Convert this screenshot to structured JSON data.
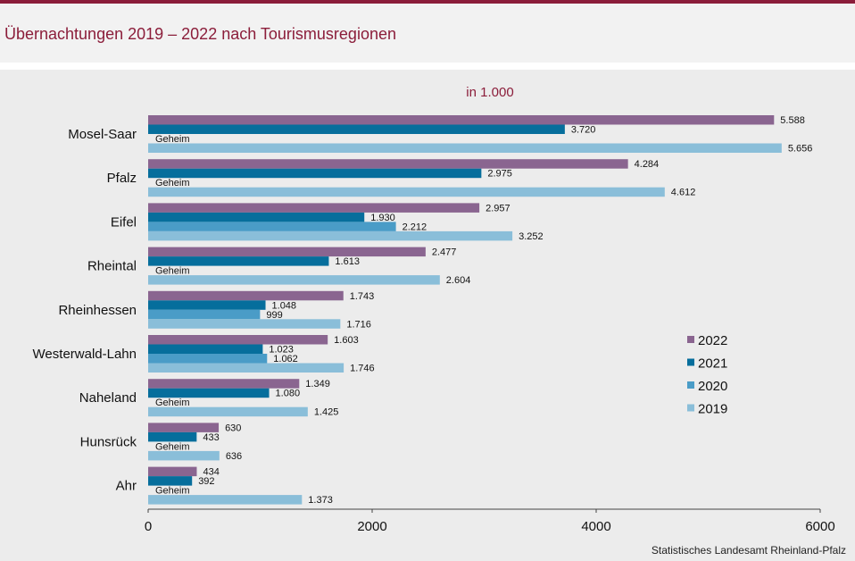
{
  "title": "Übernachtungen 2019 – 2022 nach Tourismusregionen",
  "source": "Statistisches Landesamt Rheinland-Pfalz",
  "chart_data": {
    "type": "bar",
    "orientation": "horizontal",
    "title": "Übernachtungen 2019 – 2022 nach Tourismusregionen",
    "subtitle": "in 1.000",
    "categories": [
      "Mosel-Saar",
      "Pfalz",
      "Eifel",
      "Rheintal",
      "Rheinhessen",
      "Westerwald-Lahn",
      "Naheland",
      "Hunsrück",
      "Ahr"
    ],
    "series": [
      {
        "name": "2022",
        "color": "#8a6590",
        "values": [
          5588,
          4284,
          2957,
          2477,
          1743,
          1603,
          1349,
          630,
          434
        ],
        "labels": [
          "5.588",
          "4.284",
          "2.957",
          "2.477",
          "1.743",
          "1.603",
          "1.349",
          "630",
          "434"
        ]
      },
      {
        "name": "2021",
        "color": "#066e9c",
        "values": [
          3720,
          2975,
          1930,
          1613,
          1048,
          1023,
          1080,
          433,
          392
        ],
        "labels": [
          "3.720",
          "2.975",
          "1.930",
          "1.613",
          "1.048",
          "1.023",
          "1.080",
          "433",
          "392"
        ]
      },
      {
        "name": "2020",
        "color": "#4a9cc7",
        "values": [
          null,
          null,
          2212,
          null,
          999,
          1062,
          null,
          null,
          null
        ],
        "labels": [
          "Geheim",
          "Geheim",
          "2.212",
          "Geheim",
          "999",
          "1.062",
          "Geheim",
          "Geheim",
          "Geheim"
        ]
      },
      {
        "name": "2019",
        "color": "#8abed9",
        "values": [
          5656,
          4612,
          3252,
          2604,
          1716,
          1746,
          1425,
          636,
          1373
        ],
        "labels": [
          "5.656",
          "4.612",
          "3.252",
          "2.604",
          "1.716",
          "1.746",
          "1.425",
          "636",
          "1.373"
        ]
      }
    ],
    "xlim": [
      0,
      6000
    ],
    "xticks": [
      0,
      2000,
      4000,
      6000
    ],
    "grid": false,
    "legend_position": "right"
  }
}
